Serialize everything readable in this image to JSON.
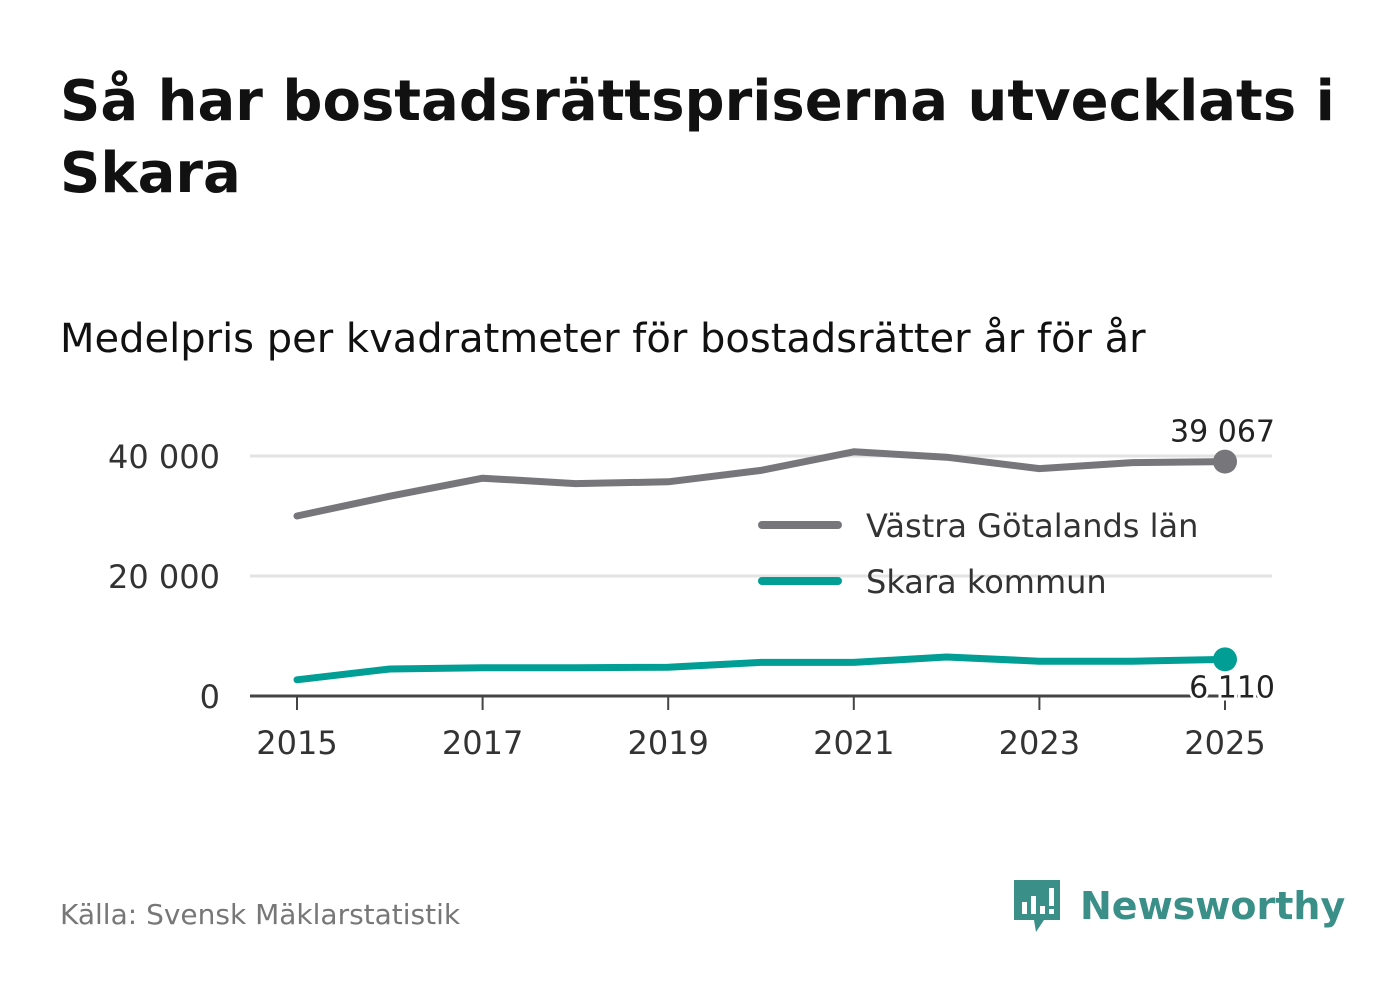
{
  "title": "Så har bostadsrättspriserna utvecklats i Skara",
  "subtitle": "Medelpris per kvadratmeter för bostadsrätter år för år",
  "source": "Källa: Svensk Mäklarstatistik",
  "brand": {
    "name": "Newsworthy",
    "icon": "newsworthy-logo-icon",
    "color": "#3a8f88"
  },
  "chart_data": {
    "type": "line",
    "x": [
      2015,
      2016,
      2017,
      2018,
      2019,
      2020,
      2021,
      2022,
      2023,
      2024,
      2025
    ],
    "series": [
      {
        "name": "Västra Götalands län",
        "color": "#77767b",
        "values": [
          30000,
          33300,
          36300,
          35400,
          35700,
          37600,
          40700,
          39800,
          37900,
          38900,
          39067
        ],
        "end_label": "39 067"
      },
      {
        "name": "Skara kommun",
        "color": "#009e94",
        "values": [
          2700,
          4500,
          4700,
          4700,
          4800,
          5600,
          5600,
          6500,
          5800,
          5800,
          6110
        ],
        "end_label": "6 110"
      }
    ],
    "ylim": [
      0,
      40000
    ],
    "yticks": [
      0,
      20000,
      40000
    ],
    "ytick_labels": [
      "0",
      "20 000",
      "40 000"
    ],
    "xticks": [
      2015,
      2017,
      2019,
      2021,
      2023,
      2025
    ],
    "xtick_labels": [
      "2015",
      "2017",
      "2019",
      "2021",
      "2023",
      "2025"
    ],
    "legend": "right",
    "grid": true,
    "xlabel": "",
    "ylabel": ""
  }
}
